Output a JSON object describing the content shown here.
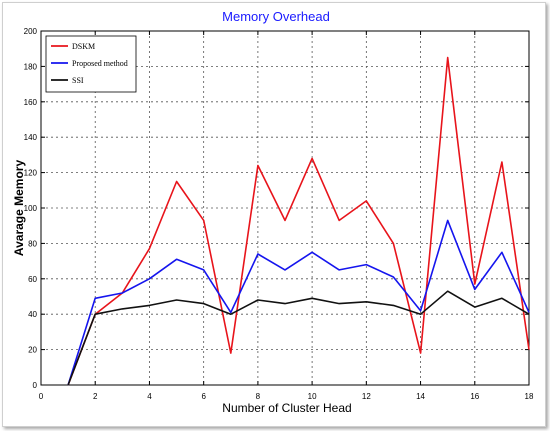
{
  "chart_data": {
    "type": "line",
    "title": "Memory Overhead",
    "xlabel": "Number of Cluster Head",
    "ylabel": "Avarage Memory",
    "xlim": [
      0,
      18
    ],
    "ylim": [
      0,
      200
    ],
    "xticks": [
      0,
      2,
      4,
      6,
      8,
      10,
      12,
      14,
      16,
      18
    ],
    "yticks": [
      0,
      20,
      40,
      60,
      80,
      100,
      120,
      140,
      160,
      180,
      200
    ],
    "grid": true,
    "legend_position": "top-left",
    "x": [
      1,
      2,
      3,
      4,
      5,
      6,
      7,
      8,
      9,
      10,
      11,
      12,
      13,
      14,
      15,
      16,
      17,
      18
    ],
    "series": [
      {
        "name": "DSKM",
        "color": "#e8141b",
        "values": [
          0,
          40,
          52,
          77,
          115,
          93,
          18,
          124,
          93,
          128,
          93,
          104,
          80,
          18,
          185,
          57,
          126,
          20
        ]
      },
      {
        "name": "Proposed method",
        "color": "#1515ee",
        "values": [
          0,
          49,
          52,
          60,
          71,
          65,
          41,
          74,
          65,
          75,
          65,
          68,
          61,
          42,
          93,
          54,
          75,
          41
        ]
      },
      {
        "name": "SSI",
        "color": "#111111",
        "values": [
          0,
          40,
          43,
          45,
          48,
          46,
          40,
          48,
          46,
          49,
          46,
          47,
          45,
          40,
          53,
          44,
          49,
          40
        ]
      }
    ]
  },
  "colors": {
    "title": "#1a1aff",
    "axis": "#000000",
    "grid": "#555555"
  }
}
